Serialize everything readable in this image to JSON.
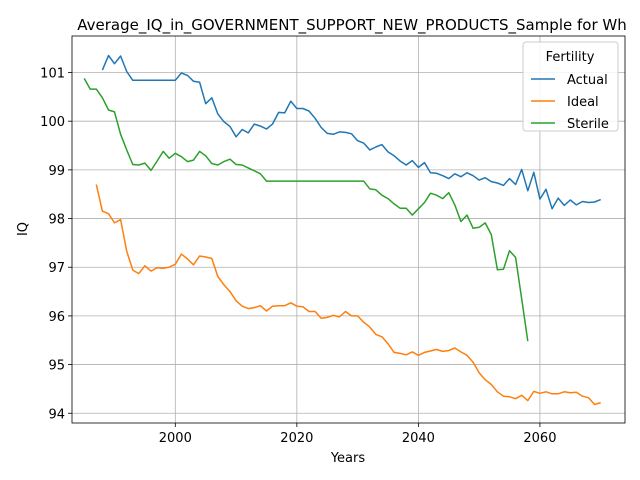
{
  "chart_data": {
    "type": "line",
    "title": "Average_IQ_in_GOVERNMENT_SUPPORT_NEW_PRODUCTS_Sample for Wh",
    "xlabel": "Years",
    "ylabel": "IQ",
    "xlim": [
      1983,
      2074
    ],
    "ylim": [
      93.8,
      101.75
    ],
    "xticks": [
      2000,
      2020,
      2040,
      2060
    ],
    "yticks": [
      94,
      95,
      96,
      97,
      98,
      99,
      100,
      101
    ],
    "grid": true,
    "legend": {
      "title": "Fertility",
      "position": "top-right"
    },
    "series": [
      {
        "name": "Actual",
        "color": "#1f77b4",
        "x": [
          1988,
          1989,
          1990,
          1991,
          1992,
          1993,
          1994,
          1995,
          1996,
          1997,
          1998,
          1999,
          2000,
          2001,
          2002,
          2003,
          2004,
          2005,
          2006,
          2007,
          2008,
          2009,
          2010,
          2011,
          2012,
          2013,
          2014,
          2015,
          2016,
          2017,
          2018,
          2019,
          2020,
          2021,
          2022,
          2023,
          2024,
          2025,
          2026,
          2027,
          2028,
          2029,
          2030,
          2031,
          2032,
          2033,
          2034,
          2035,
          2036,
          2037,
          2038,
          2039,
          2040,
          2041,
          2042,
          2043,
          2044,
          2045,
          2046,
          2047,
          2048,
          2049,
          2050,
          2051,
          2052,
          2053,
          2054,
          2055,
          2056,
          2057,
          2058,
          2059,
          2060,
          2061,
          2062,
          2063,
          2064,
          2065,
          2066,
          2067,
          2068,
          2069,
          2070
        ],
        "values": [
          101.05,
          101.35,
          101.18,
          101.34,
          101.02,
          100.84,
          100.84,
          100.84,
          100.84,
          100.84,
          100.84,
          100.84,
          100.84,
          100.99,
          100.94,
          100.82,
          100.8,
          100.36,
          100.48,
          100.15,
          99.99,
          99.89,
          99.68,
          99.83,
          99.76,
          99.94,
          99.9,
          99.84,
          99.94,
          100.18,
          100.17,
          100.41,
          100.26,
          100.26,
          100.21,
          100.06,
          99.87,
          99.75,
          99.73,
          99.78,
          99.77,
          99.74,
          99.6,
          99.55,
          99.41,
          99.47,
          99.52,
          99.37,
          99.29,
          99.18,
          99.1,
          99.19,
          99.05,
          99.15,
          98.94,
          98.93,
          98.88,
          98.82,
          98.92,
          98.86,
          98.94,
          98.88,
          98.79,
          98.84,
          98.76,
          98.73,
          98.68,
          98.82,
          98.7,
          99.01,
          98.57,
          98.95,
          98.4,
          98.6,
          98.2,
          98.42,
          98.27,
          98.38,
          98.28,
          98.35,
          98.33,
          98.34,
          98.39
        ]
      },
      {
        "name": "Ideal",
        "color": "#ff7f0e",
        "x": [
          1987,
          1988,
          1989,
          1990,
          1991,
          1992,
          1993,
          1994,
          1995,
          1996,
          1997,
          1998,
          1999,
          2000,
          2001,
          2002,
          2003,
          2004,
          2005,
          2006,
          2007,
          2008,
          2009,
          2010,
          2011,
          2012,
          2013,
          2014,
          2015,
          2016,
          2017,
          2018,
          2019,
          2020,
          2021,
          2022,
          2023,
          2024,
          2025,
          2026,
          2027,
          2028,
          2029,
          2030,
          2031,
          2032,
          2033,
          2034,
          2035,
          2036,
          2037,
          2038,
          2039,
          2040,
          2041,
          2042,
          2043,
          2044,
          2045,
          2046,
          2047,
          2048,
          2049,
          2050,
          2051,
          2052,
          2053,
          2054,
          2055,
          2056,
          2057,
          2058,
          2059,
          2060,
          2061,
          2062,
          2063,
          2064,
          2065,
          2066,
          2067,
          2068,
          2069,
          2070
        ],
        "values": [
          98.7,
          98.15,
          98.1,
          97.91,
          97.98,
          97.33,
          96.94,
          96.87,
          97.03,
          96.92,
          96.99,
          96.98,
          97.0,
          97.06,
          97.27,
          97.17,
          97.05,
          97.23,
          97.21,
          97.18,
          96.81,
          96.64,
          96.5,
          96.31,
          96.2,
          96.15,
          96.17,
          96.21,
          96.1,
          96.2,
          96.21,
          96.21,
          96.27,
          96.2,
          96.19,
          96.09,
          96.09,
          95.95,
          95.97,
          96.01,
          95.98,
          96.09,
          96.0,
          96.0,
          95.87,
          95.77,
          95.62,
          95.57,
          95.43,
          95.25,
          95.23,
          95.2,
          95.26,
          95.19,
          95.25,
          95.28,
          95.31,
          95.27,
          95.29,
          95.34,
          95.26,
          95.19,
          95.05,
          94.83,
          94.69,
          94.59,
          94.44,
          94.35,
          94.34,
          94.3,
          94.37,
          94.26,
          94.45,
          94.41,
          94.44,
          94.4,
          94.4,
          94.44,
          94.42,
          94.43,
          94.35,
          94.32,
          94.18,
          94.22
        ]
      },
      {
        "name": "Sterile",
        "color": "#2ca02c",
        "x": [
          1985,
          1986,
          1987,
          1988,
          1989,
          1990,
          1991,
          1992,
          1993,
          1994,
          1995,
          1996,
          1997,
          1998,
          1999,
          2000,
          2001,
          2002,
          2003,
          2004,
          2005,
          2006,
          2007,
          2008,
          2009,
          2010,
          2011,
          2012,
          2013,
          2014,
          2015,
          2016,
          2017,
          2018,
          2019,
          2020,
          2021,
          2022,
          2023,
          2024,
          2025,
          2026,
          2027,
          2028,
          2029,
          2030,
          2031,
          2032,
          2033,
          2034,
          2035,
          2036,
          2037,
          2038,
          2039,
          2040,
          2041,
          2042,
          2043,
          2044,
          2045,
          2046,
          2047,
          2048,
          2049,
          2050,
          2051,
          2052,
          2053,
          2054,
          2055,
          2056,
          2057,
          2058
        ],
        "values": [
          100.88,
          100.66,
          100.66,
          100.48,
          100.23,
          100.19,
          99.73,
          99.41,
          99.11,
          99.1,
          99.14,
          98.99,
          99.18,
          99.38,
          99.24,
          99.34,
          99.27,
          99.17,
          99.2,
          99.38,
          99.29,
          99.13,
          99.1,
          99.17,
          99.22,
          99.11,
          99.1,
          99.04,
          98.98,
          98.92,
          98.77,
          98.77,
          98.77,
          98.77,
          98.77,
          98.77,
          98.77,
          98.77,
          98.77,
          98.77,
          98.77,
          98.77,
          98.77,
          98.77,
          98.77,
          98.77,
          98.77,
          98.61,
          98.59,
          98.48,
          98.41,
          98.3,
          98.21,
          98.21,
          98.07,
          98.2,
          98.33,
          98.52,
          98.48,
          98.41,
          98.53,
          98.28,
          97.94,
          98.07,
          97.8,
          97.82,
          97.91,
          97.67,
          96.95,
          96.96,
          97.34,
          97.2,
          96.35,
          95.48
        ]
      }
    ]
  }
}
